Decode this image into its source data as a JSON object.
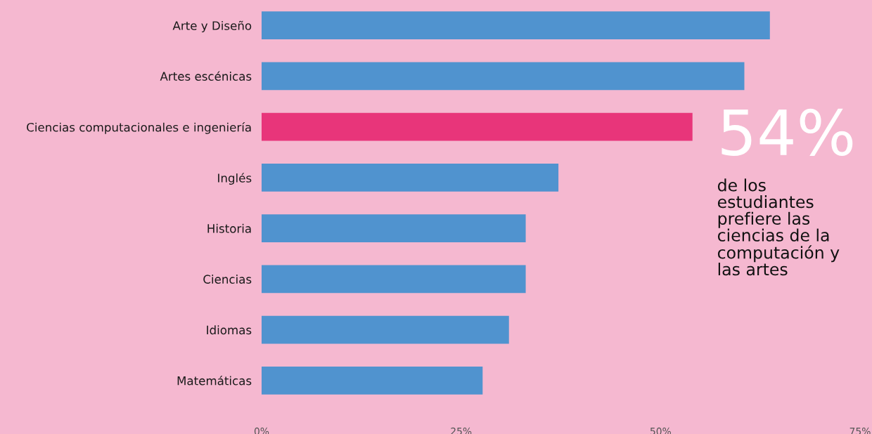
{
  "chart_data": {
    "type": "bar",
    "orientation": "horizontal",
    "categories": [
      "Arte y Diseño",
      "Artes escénicas",
      "Ciencias computacionales e ingeniería",
      "Inglés",
      "Historia",
      "Ciencias",
      "Idiomas",
      "Matemáticas"
    ],
    "values": [
      63.7,
      60.5,
      54,
      37.2,
      33.1,
      33.1,
      31,
      27.7
    ],
    "colors": [
      "#5093cf",
      "#5093cf",
      "#e8357a",
      "#5093cf",
      "#5093cf",
      "#5093cf",
      "#5093cf",
      "#5093cf"
    ],
    "xlim": [
      0,
      75
    ],
    "xticks": [
      {
        "value": 0,
        "label": "0%"
      },
      {
        "value": 25,
        "label": "25%"
      },
      {
        "value": 50,
        "label": "50%"
      },
      {
        "value": 75,
        "label": "75%"
      }
    ],
    "grid": false,
    "annotations": [
      "54%",
      "de los\nestudiantes\nprefiere las\nciencias de la\ncomputación y\nlas artes"
    ]
  }
}
